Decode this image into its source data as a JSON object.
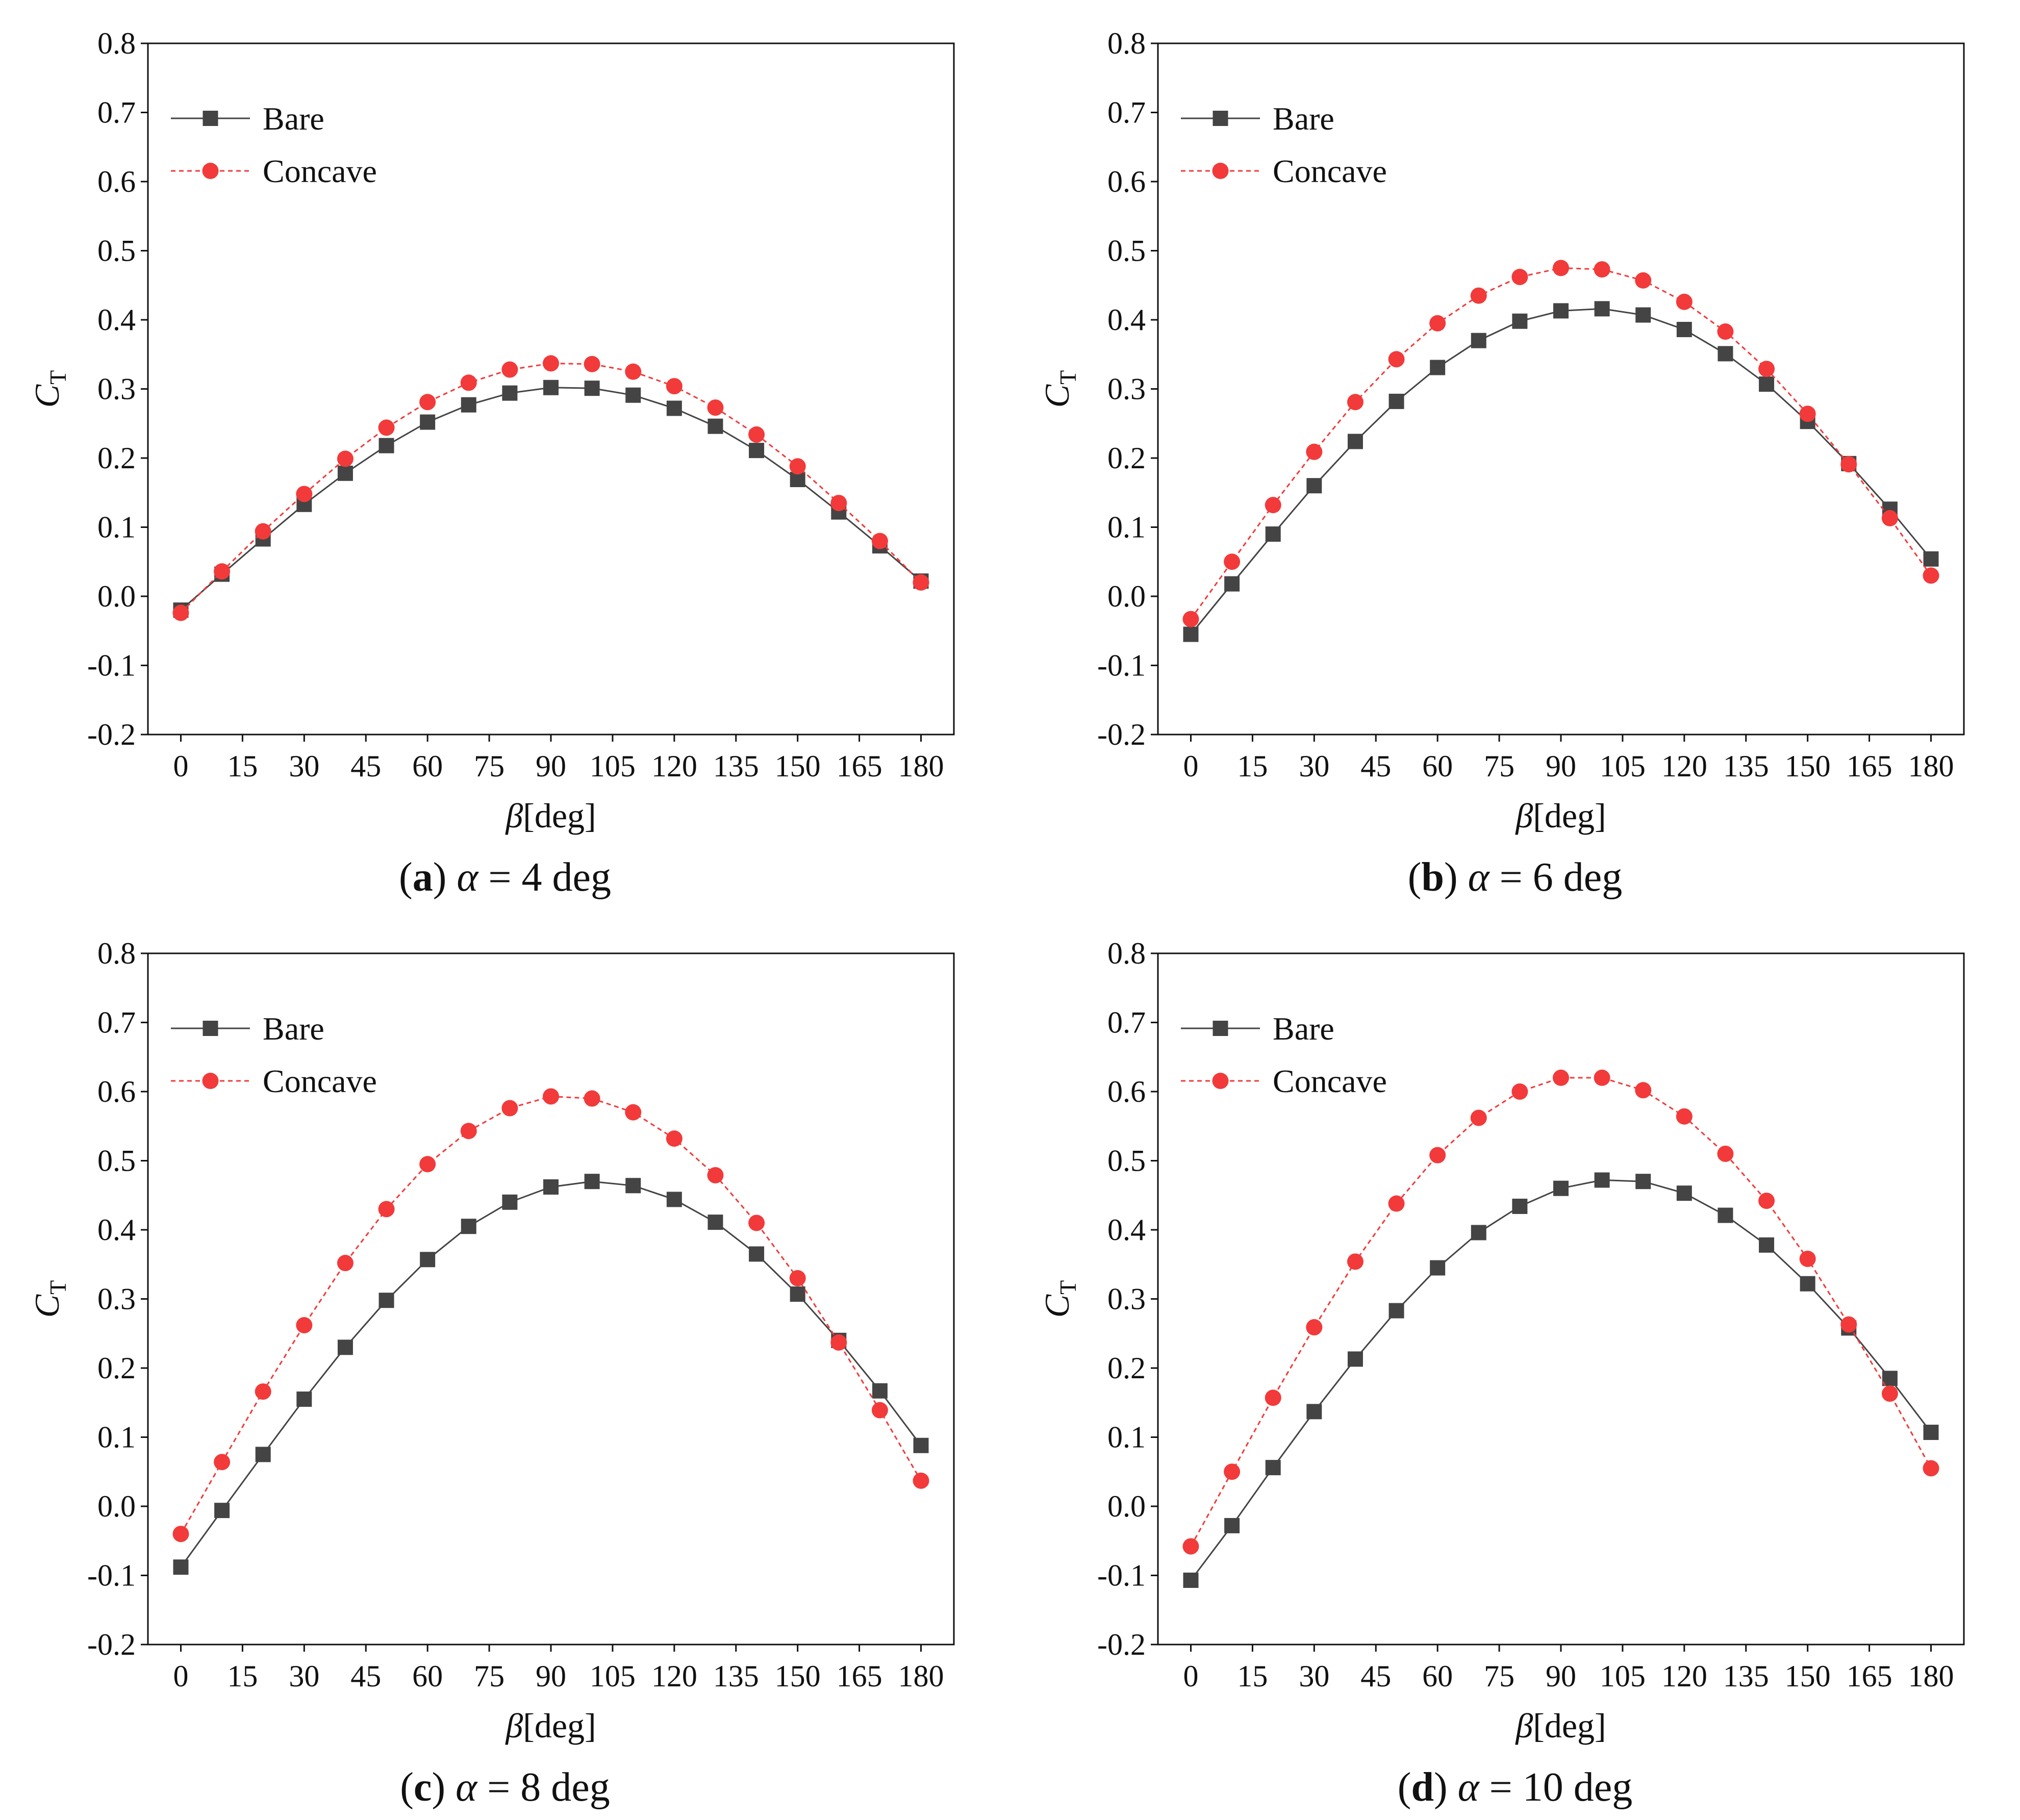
{
  "colors": {
    "bare": "#444444",
    "concave": "#f23a3a",
    "axis": "#111111"
  },
  "chart_data": [
    {
      "type": "line",
      "caption": {
        "letter": "a",
        "greek": "α",
        "text": " = 4 deg"
      },
      "xlabel": {
        "symbol": "β",
        "unit": "[deg]"
      },
      "ylabel": {
        "symbol": "C",
        "subscript": "T"
      },
      "xlim": [
        -8,
        188
      ],
      "ylim": [
        -0.2,
        0.8
      ],
      "xticks": [
        "0",
        "15",
        "30",
        "45",
        "60",
        "75",
        "90",
        "105",
        "120",
        "135",
        "150",
        "165",
        "180"
      ],
      "yticks": [
        "-0.2",
        "-0.1",
        "0.0",
        "0.1",
        "0.2",
        "0.3",
        "0.4",
        "0.5",
        "0.6",
        "0.7",
        "0.8"
      ],
      "legend": {
        "position": "top-left",
        "bare_label": "Bare",
        "concave_label": "Concave"
      },
      "x": [
        0,
        10,
        20,
        30,
        40,
        50,
        60,
        70,
        80,
        90,
        100,
        110,
        120,
        130,
        140,
        150,
        160,
        170,
        180
      ],
      "series": [
        {
          "name": "Bare",
          "marker": "square",
          "line": "solid",
          "values": [
            -0.02,
            0.032,
            0.083,
            0.133,
            0.178,
            0.218,
            0.252,
            0.277,
            0.294,
            0.302,
            0.301,
            0.291,
            0.272,
            0.246,
            0.211,
            0.169,
            0.122,
            0.073,
            0.022
          ]
        },
        {
          "name": "Concave",
          "marker": "circle",
          "line": "dashed",
          "values": [
            -0.024,
            0.036,
            0.094,
            0.148,
            0.199,
            0.244,
            0.281,
            0.309,
            0.328,
            0.337,
            0.336,
            0.325,
            0.304,
            0.273,
            0.234,
            0.188,
            0.135,
            0.08,
            0.02
          ]
        }
      ]
    },
    {
      "type": "line",
      "caption": {
        "letter": "b",
        "greek": "α",
        "text": " = 6 deg"
      },
      "xlabel": {
        "symbol": "β",
        "unit": "[deg]"
      },
      "ylabel": {
        "symbol": "C",
        "subscript": "T"
      },
      "xlim": [
        -8,
        188
      ],
      "ylim": [
        -0.2,
        0.8
      ],
      "xticks": [
        "0",
        "15",
        "30",
        "45",
        "60",
        "75",
        "90",
        "105",
        "120",
        "135",
        "150",
        "165",
        "180"
      ],
      "yticks": [
        "-0.2",
        "-0.1",
        "0.0",
        "0.1",
        "0.2",
        "0.3",
        "0.4",
        "0.5",
        "0.6",
        "0.7",
        "0.8"
      ],
      "legend": {
        "position": "top-left",
        "bare_label": "Bare",
        "concave_label": "Concave"
      },
      "x": [
        0,
        10,
        20,
        30,
        40,
        50,
        60,
        70,
        80,
        90,
        100,
        110,
        120,
        130,
        140,
        150,
        160,
        170,
        180
      ],
      "series": [
        {
          "name": "Bare",
          "marker": "square",
          "line": "solid",
          "values": [
            -0.055,
            0.018,
            0.09,
            0.16,
            0.224,
            0.282,
            0.331,
            0.37,
            0.398,
            0.413,
            0.416,
            0.407,
            0.386,
            0.351,
            0.307,
            0.253,
            0.192,
            0.126,
            0.054
          ]
        },
        {
          "name": "Concave",
          "marker": "circle",
          "line": "dashed",
          "values": [
            -0.033,
            0.05,
            0.132,
            0.209,
            0.281,
            0.343,
            0.395,
            0.435,
            0.462,
            0.475,
            0.473,
            0.457,
            0.426,
            0.383,
            0.329,
            0.264,
            0.191,
            0.113,
            0.03
          ]
        }
      ]
    },
    {
      "type": "line",
      "caption": {
        "letter": "c",
        "greek": "α",
        "text": " = 8 deg"
      },
      "xlabel": {
        "symbol": "β",
        "unit": "[deg]"
      },
      "ylabel": {
        "symbol": "C",
        "subscript": "T"
      },
      "xlim": [
        -8,
        188
      ],
      "ylim": [
        -0.2,
        0.8
      ],
      "xticks": [
        "0",
        "15",
        "30",
        "45",
        "60",
        "75",
        "90",
        "105",
        "120",
        "135",
        "150",
        "165",
        "180"
      ],
      "yticks": [
        "-0.2",
        "-0.1",
        "0.0",
        "0.1",
        "0.2",
        "0.3",
        "0.4",
        "0.5",
        "0.6",
        "0.7",
        "0.8"
      ],
      "legend": {
        "position": "top-left",
        "bare_label": "Bare",
        "concave_label": "Concave"
      },
      "x": [
        0,
        10,
        20,
        30,
        40,
        50,
        60,
        70,
        80,
        90,
        100,
        110,
        120,
        130,
        140,
        150,
        160,
        170,
        180
      ],
      "series": [
        {
          "name": "Bare",
          "marker": "square",
          "line": "solid",
          "values": [
            -0.088,
            -0.006,
            0.075,
            0.155,
            0.23,
            0.298,
            0.357,
            0.405,
            0.44,
            0.462,
            0.47,
            0.464,
            0.444,
            0.411,
            0.365,
            0.307,
            0.24,
            0.167,
            0.088
          ]
        },
        {
          "name": "Concave",
          "marker": "circle",
          "line": "dashed",
          "values": [
            -0.04,
            0.064,
            0.166,
            0.262,
            0.352,
            0.43,
            0.495,
            0.543,
            0.576,
            0.593,
            0.59,
            0.57,
            0.532,
            0.479,
            0.41,
            0.33,
            0.237,
            0.139,
            0.037
          ]
        }
      ]
    },
    {
      "type": "line",
      "caption": {
        "letter": "d",
        "greek": "α",
        "text": " = 10 deg"
      },
      "xlabel": {
        "symbol": "β",
        "unit": "[deg]"
      },
      "ylabel": {
        "symbol": "C",
        "subscript": "T"
      },
      "xlim": [
        -8,
        188
      ],
      "ylim": [
        -0.2,
        0.8
      ],
      "xticks": [
        "0",
        "15",
        "30",
        "45",
        "60",
        "75",
        "90",
        "105",
        "120",
        "135",
        "150",
        "165",
        "180"
      ],
      "yticks": [
        "-0.2",
        "-0.1",
        "0.0",
        "0.1",
        "0.2",
        "0.3",
        "0.4",
        "0.5",
        "0.6",
        "0.7",
        "0.8"
      ],
      "legend": {
        "position": "top-left",
        "bare_label": "Bare",
        "concave_label": "Concave"
      },
      "x": [
        0,
        10,
        20,
        30,
        40,
        50,
        60,
        70,
        80,
        90,
        100,
        110,
        120,
        130,
        140,
        150,
        160,
        170,
        180
      ],
      "series": [
        {
          "name": "Bare",
          "marker": "square",
          "line": "solid",
          "values": [
            -0.107,
            -0.028,
            0.056,
            0.137,
            0.213,
            0.283,
            0.345,
            0.396,
            0.434,
            0.46,
            0.472,
            0.47,
            0.453,
            0.421,
            0.378,
            0.322,
            0.258,
            0.185,
            0.107
          ]
        },
        {
          "name": "Concave",
          "marker": "circle",
          "line": "dashed",
          "values": [
            -0.058,
            0.05,
            0.157,
            0.259,
            0.354,
            0.438,
            0.508,
            0.562,
            0.6,
            0.62,
            0.62,
            0.602,
            0.564,
            0.51,
            0.442,
            0.358,
            0.263,
            0.163,
            0.055
          ]
        }
      ]
    }
  ]
}
